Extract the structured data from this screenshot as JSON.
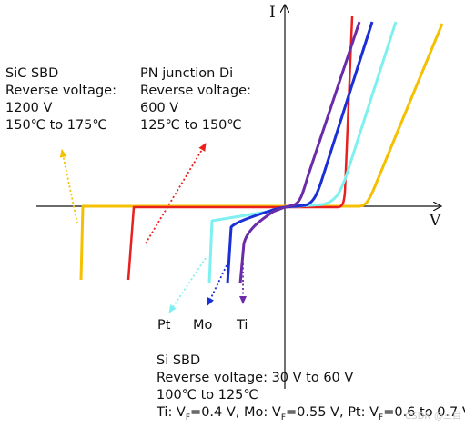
{
  "axes": {
    "y_label": "I",
    "x_label": "V"
  },
  "sic_sbd": {
    "lines": [
      "SiC SBD",
      "Reverse voltage:",
      "1200 V",
      "150℃ to 175℃"
    ],
    "color": "#f5c000"
  },
  "pn_diode": {
    "lines": [
      "PN junction Di",
      "Reverse voltage:",
      "600 V",
      "125℃ to 150℃"
    ],
    "color": "#e8201e"
  },
  "si_sbd": {
    "title": "Si SBD",
    "reverse": "Reverse voltage: 30 V to 60 V",
    "temp": "100℃ to 125℃",
    "vf": {
      "ti_prefix": "Ti: V",
      "ti_value": "=0.4 V,",
      "mo_prefix": "Mo: V",
      "mo_value": "=0.55 V,",
      "pt_prefix": "Pt: V",
      "pt_value": "=0.6 to 0.7 V",
      "sub": "F"
    }
  },
  "metals": {
    "pt": {
      "label": "Pt",
      "color": "#7ef0f0"
    },
    "mo": {
      "label": "Mo",
      "color": "#1a2fd4"
    },
    "ti": {
      "label": "Ti",
      "color": "#6a2ca8"
    }
  },
  "watermark": "CSDN @三目"
}
